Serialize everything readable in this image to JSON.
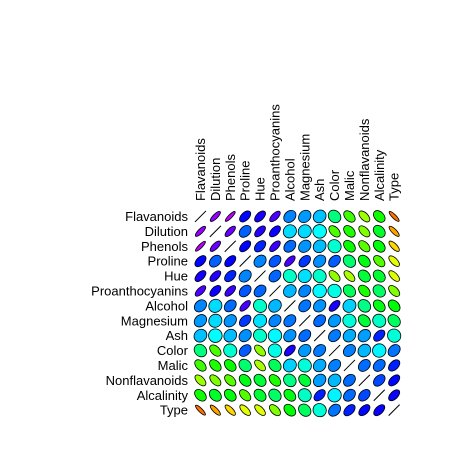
{
  "chart_data": {
    "type": "heatmap",
    "variables": [
      "Flavanoids",
      "Dilution",
      "Phenols",
      "Proline",
      "Hue",
      "Proanthocyanins",
      "Alcohol",
      "Magnesium",
      "Ash",
      "Color",
      "Malic",
      "Nonflavanoids",
      "Alcalinity",
      "Type"
    ],
    "color_scale": {
      "-1": "#ff0000",
      "0": "#00ffff",
      "1": "#ff00ff",
      "direction": "red → yellow → green → cyan → blue → magenta as value goes from -1 to 1"
    },
    "correlations": [
      [
        1.0,
        0.79,
        0.86,
        0.49,
        0.54,
        0.65,
        0.24,
        0.2,
        0.12,
        -0.17,
        -0.41,
        -0.54,
        -0.35,
        -0.85
      ],
      [
        0.79,
        1.0,
        0.7,
        0.31,
        0.57,
        0.52,
        0.07,
        0.07,
        0.0,
        -0.43,
        -0.37,
        -0.5,
        -0.28,
        -0.79
      ],
      [
        0.86,
        0.7,
        1.0,
        0.5,
        0.43,
        0.61,
        0.29,
        0.21,
        0.13,
        -0.06,
        -0.34,
        -0.45,
        -0.32,
        -0.72
      ],
      [
        0.49,
        0.31,
        0.5,
        1.0,
        0.24,
        0.33,
        0.64,
        0.39,
        0.22,
        0.32,
        -0.19,
        -0.31,
        -0.44,
        -0.63
      ],
      [
        0.54,
        0.57,
        0.43,
        0.24,
        1.0,
        0.3,
        -0.07,
        0.06,
        -0.07,
        -0.52,
        -0.56,
        -0.26,
        -0.27,
        -0.62
      ],
      [
        0.65,
        0.52,
        0.61,
        0.33,
        0.3,
        1.0,
        0.14,
        0.24,
        0.01,
        -0.03,
        -0.22,
        -0.37,
        -0.2,
        -0.5
      ],
      [
        0.24,
        0.07,
        0.29,
        0.64,
        -0.07,
        0.14,
        1.0,
        0.27,
        0.21,
        0.55,
        0.09,
        -0.16,
        -0.31,
        -0.33
      ],
      [
        0.2,
        0.07,
        0.21,
        0.39,
        0.06,
        0.24,
        0.27,
        1.0,
        0.29,
        0.2,
        -0.05,
        -0.26,
        -0.08,
        -0.21
      ],
      [
        0.12,
        0.0,
        0.13,
        0.22,
        -0.07,
        0.01,
        0.21,
        0.29,
        1.0,
        0.26,
        0.16,
        0.19,
        0.44,
        -0.05
      ],
      [
        -0.17,
        -0.43,
        -0.06,
        0.32,
        -0.52,
        -0.03,
        0.55,
        0.2,
        0.26,
        1.0,
        0.25,
        0.14,
        0.02,
        0.27
      ],
      [
        -0.41,
        -0.37,
        -0.34,
        -0.19,
        -0.56,
        -0.22,
        0.09,
        -0.05,
        0.16,
        0.25,
        1.0,
        0.29,
        0.29,
        0.44
      ],
      [
        -0.54,
        -0.5,
        -0.45,
        -0.31,
        -0.26,
        -0.37,
        -0.16,
        -0.26,
        0.19,
        0.14,
        0.29,
        1.0,
        0.36,
        0.49
      ],
      [
        -0.35,
        -0.28,
        -0.32,
        -0.44,
        -0.27,
        -0.2,
        -0.31,
        -0.08,
        0.44,
        0.02,
        0.29,
        0.36,
        1.0,
        0.52
      ],
      [
        -0.85,
        -0.79,
        -0.72,
        -0.63,
        -0.62,
        -0.5,
        -0.33,
        -0.21,
        -0.05,
        0.27,
        0.44,
        0.49,
        0.52,
        1.0
      ]
    ],
    "diagonal_style": "line",
    "legend": "none",
    "grid": false
  }
}
